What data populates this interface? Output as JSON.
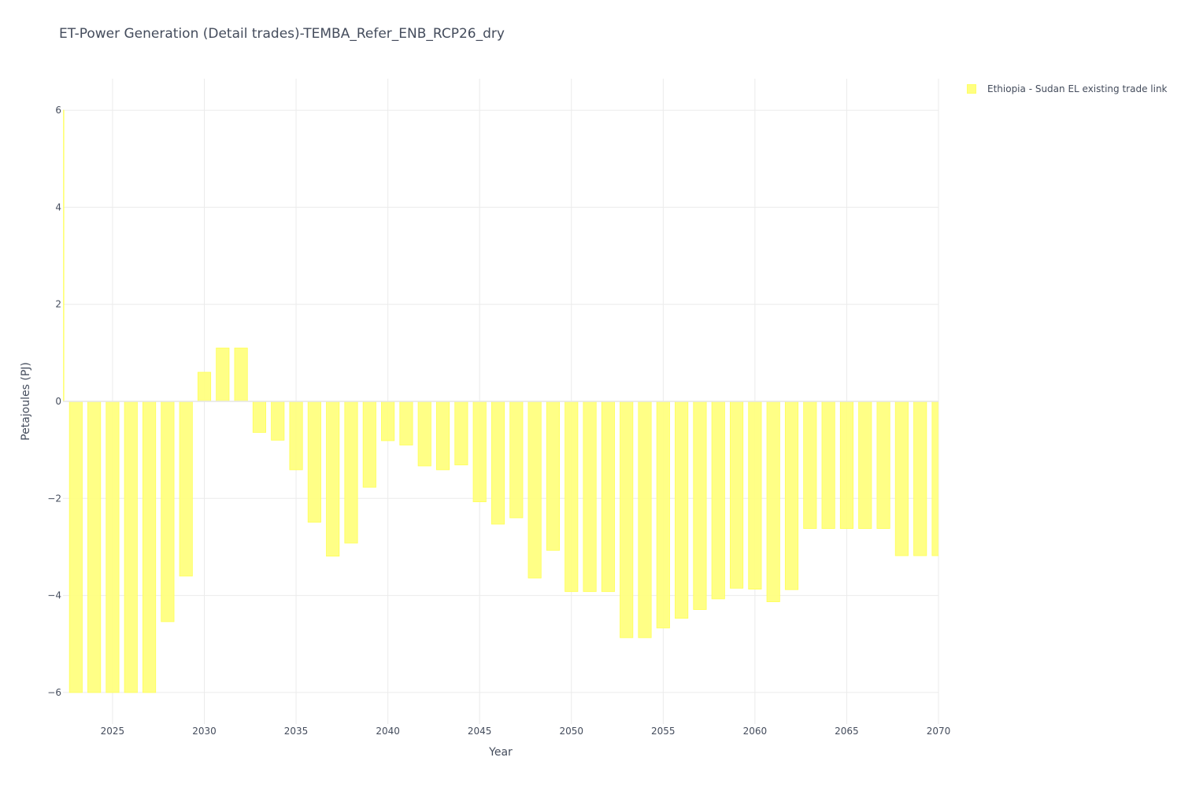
{
  "chart_data": {
    "type": "bar",
    "title": "ET-Power Generation (Detail trades)-TEMBA_Refer_ENB_RCP26_dry",
    "xlabel": "Year",
    "ylabel": "Petajoules (PJ)",
    "xlim": [
      2022.3,
      2070
    ],
    "ylim": [
      -6.65,
      6.65
    ],
    "x_ticks": [
      2025,
      2030,
      2035,
      2040,
      2045,
      2050,
      2055,
      2060,
      2065,
      2070
    ],
    "y_ticks": [
      -6,
      -4,
      -2,
      0,
      2,
      4,
      6
    ],
    "y_tick_labels": [
      "−6",
      "−4",
      "−2",
      "0",
      "2",
      "4",
      "6"
    ],
    "grid": true,
    "legend_position": "top-right",
    "x": [
      2022,
      2023,
      2024,
      2025,
      2026,
      2027,
      2028,
      2029,
      2030,
      2031,
      2032,
      2033,
      2034,
      2035,
      2036,
      2037,
      2038,
      2039,
      2040,
      2041,
      2042,
      2043,
      2044,
      2045,
      2046,
      2047,
      2048,
      2049,
      2050,
      2051,
      2052,
      2053,
      2054,
      2055,
      2056,
      2057,
      2058,
      2059,
      2060,
      2061,
      2062,
      2063,
      2064,
      2065,
      2066,
      2067,
      2068,
      2069,
      2070
    ],
    "series": [
      {
        "name": "Ethiopia - Sudan EL existing trade link",
        "color": "#ffff80",
        "values": [
          6.0,
          -6.0,
          -6.0,
          -6.0,
          -6.0,
          -6.0,
          -4.54,
          -3.6,
          0.6,
          1.1,
          1.1,
          -0.64,
          -0.8,
          -1.41,
          -2.49,
          -3.19,
          -2.92,
          -1.77,
          -0.81,
          -0.9,
          -1.33,
          -1.41,
          -1.31,
          -2.07,
          -2.53,
          -2.4,
          -3.64,
          -3.07,
          -3.92,
          -3.92,
          -3.92,
          -4.87,
          -4.87,
          -4.67,
          -4.47,
          -4.29,
          -4.07,
          -3.85,
          -3.87,
          -4.13,
          -3.88,
          -2.62,
          -2.62,
          -2.62,
          -2.62,
          -2.62,
          -3.18,
          -3.18,
          -3.18
        ]
      }
    ]
  }
}
